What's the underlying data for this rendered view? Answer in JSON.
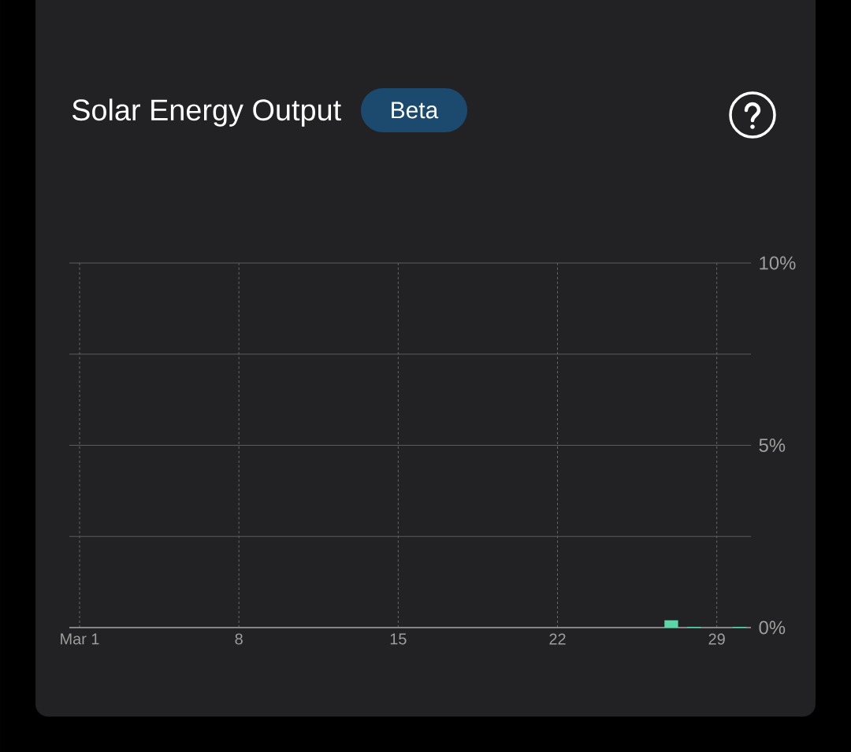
{
  "chart_data": {
    "type": "bar",
    "title": "Solar Energy Output",
    "annotations": [
      "Beta"
    ],
    "categories": [
      "Mar 1",
      null,
      null,
      null,
      null,
      null,
      null,
      "8",
      null,
      null,
      null,
      null,
      null,
      null,
      "15",
      null,
      null,
      null,
      null,
      null,
      null,
      "22",
      null,
      null,
      null,
      null,
      null,
      null,
      "29",
      null
    ],
    "values": [
      null,
      null,
      null,
      null,
      null,
      null,
      null,
      null,
      null,
      null,
      null,
      null,
      null,
      null,
      null,
      null,
      null,
      null,
      null,
      null,
      null,
      null,
      null,
      null,
      null,
      null,
      0.2,
      0.02,
      null,
      0.02
    ],
    "color": "#5cd6a6",
    "ylim": [
      0,
      10
    ],
    "yticks": [
      {
        "value": 0,
        "label": "0%"
      },
      {
        "value": 2.5,
        "label": null
      },
      {
        "value": 5,
        "label": "5%"
      },
      {
        "value": 7.5,
        "label": null
      },
      {
        "value": 10,
        "label": "10%"
      }
    ],
    "grid": true
  }
}
